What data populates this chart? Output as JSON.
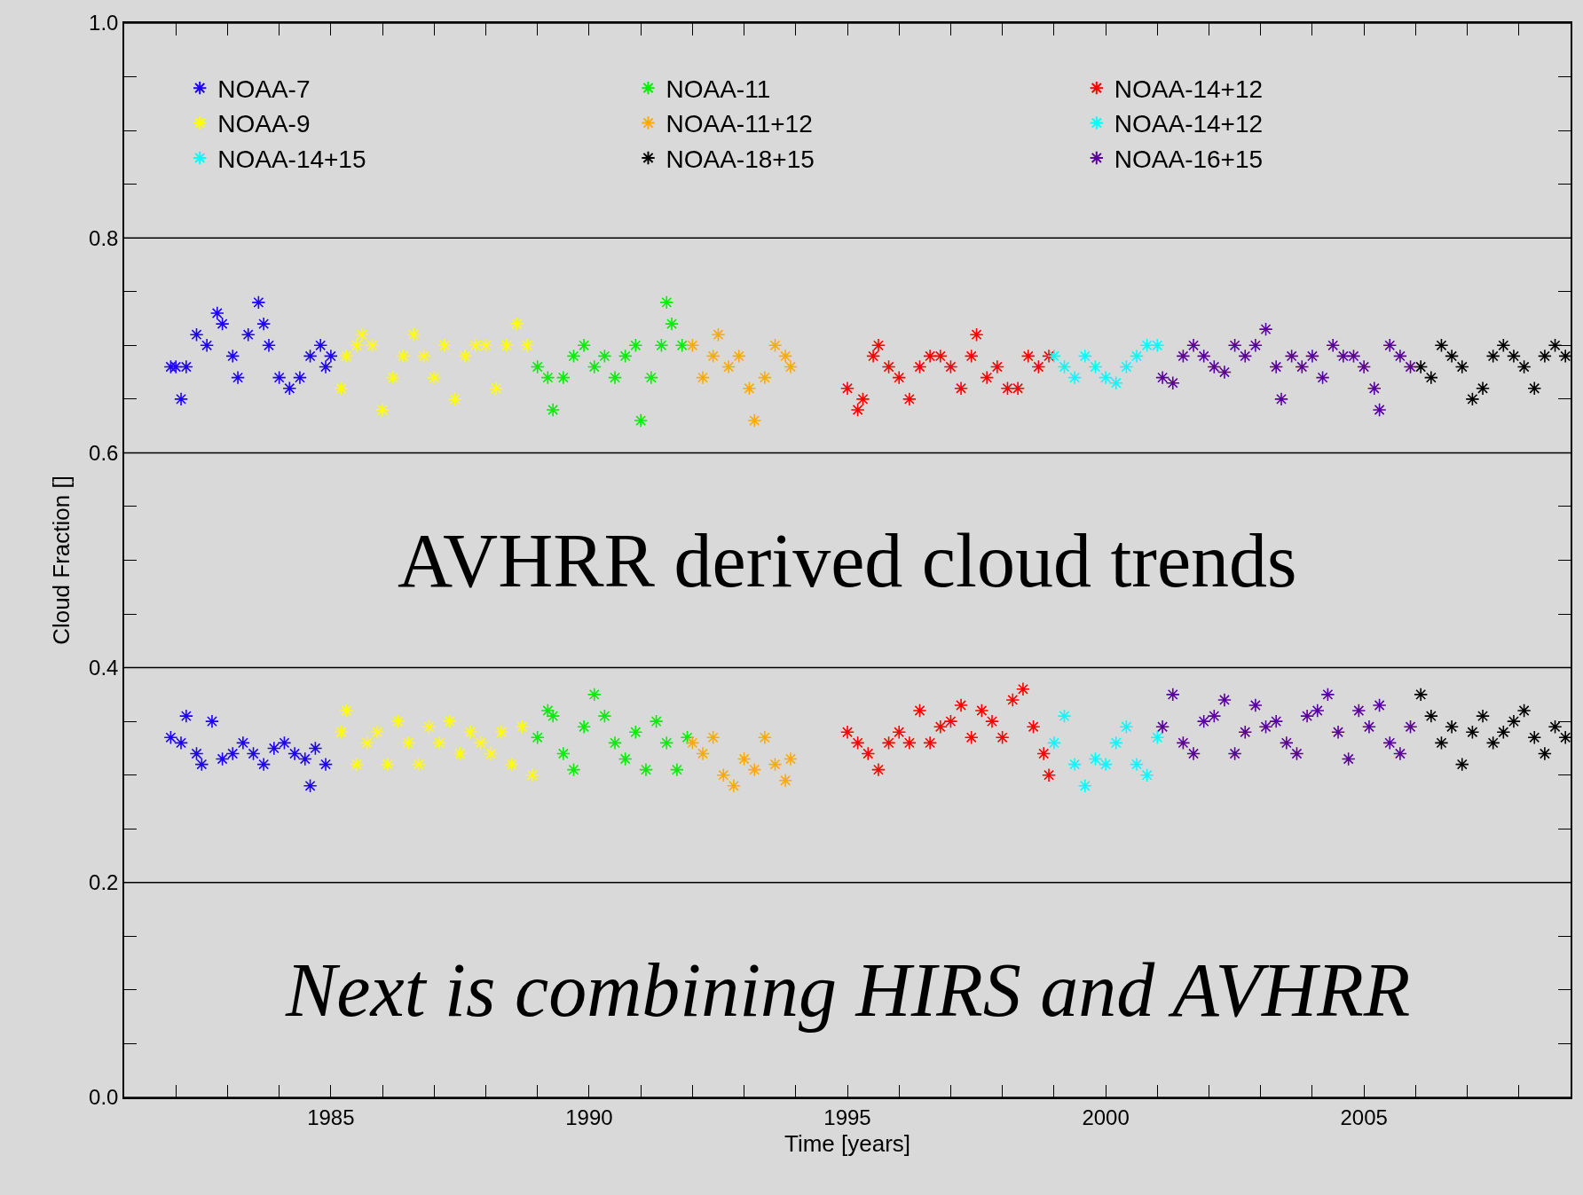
{
  "chart_data": {
    "type": "scatter",
    "xlabel": "Time [years]",
    "ylabel": "Cloud Fraction []",
    "annotations": [
      "AVHRR derived cloud trends",
      "Next is combining HIRS and AVHRR"
    ],
    "xlim": [
      1981,
      2009
    ],
    "ylim": [
      0,
      1
    ],
    "xticks": [
      {
        "value": 1982,
        "label": null
      },
      {
        "value": 1983,
        "label": null
      },
      {
        "value": 1984,
        "label": null
      },
      1985,
      {
        "value": 1986,
        "label": null
      },
      {
        "value": 1987,
        "label": null
      },
      {
        "value": 1988,
        "label": null
      },
      {
        "value": 1989,
        "label": null
      },
      1990,
      {
        "value": 1991,
        "label": null
      },
      {
        "value": 1992,
        "label": null
      },
      {
        "value": 1993,
        "label": null
      },
      {
        "value": 1994,
        "label": null
      },
      1995,
      {
        "value": 1996,
        "label": null
      },
      {
        "value": 1997,
        "label": null
      },
      {
        "value": 1998,
        "label": null
      },
      {
        "value": 1999,
        "label": null
      },
      2000,
      {
        "value": 2001,
        "label": null
      },
      {
        "value": 2002,
        "label": null
      },
      {
        "value": 2003,
        "label": null
      },
      {
        "value": 2004,
        "label": null
      },
      2005,
      {
        "value": 2006,
        "label": null
      },
      {
        "value": 2007,
        "label": null
      },
      {
        "value": 2008,
        "label": null
      }
    ],
    "yticks": [
      {
        "value": 0,
        "label": "0.0"
      },
      {
        "value": 0.05,
        "label": null
      },
      {
        "value": 0.1,
        "label": null
      },
      {
        "value": 0.15,
        "label": null
      },
      {
        "value": 0.2,
        "label": "0.2"
      },
      {
        "value": 0.25,
        "label": null
      },
      {
        "value": 0.3,
        "label": null
      },
      {
        "value": 0.35,
        "label": null
      },
      {
        "value": 0.4,
        "label": "0.4"
      },
      {
        "value": 0.45,
        "label": null
      },
      {
        "value": 0.5,
        "label": null
      },
      {
        "value": 0.55,
        "label": null
      },
      {
        "value": 0.6,
        "label": "0.6"
      },
      {
        "value": 0.65,
        "label": null
      },
      {
        "value": 0.7,
        "label": null
      },
      {
        "value": 0.75,
        "label": null
      },
      {
        "value": 0.8,
        "label": "0.8"
      },
      {
        "value": 0.85,
        "label": null
      },
      {
        "value": 0.9,
        "label": null
      },
      {
        "value": 0.95,
        "label": null
      },
      {
        "value": 1,
        "label": "1.0"
      }
    ],
    "grid": "y",
    "legend": "top left",
    "marker": "cross",
    "series": [
      {
        "name": "NOAA-7",
        "color": "#1e00ff",
        "x": [
          1981.9,
          1982.0,
          1982.1,
          1982.2,
          1982.4,
          1982.6,
          1982.8,
          1982.9,
          1983.1,
          1983.2,
          1983.4,
          1983.6,
          1983.7,
          1983.8,
          1984.0,
          1984.2,
          1984.4,
          1984.6,
          1984.8,
          1984.9,
          1985.0,
          1981.9,
          1982.1,
          1982.2,
          1982.4,
          1982.5,
          1982.7,
          1982.9,
          1983.1,
          1983.3,
          1983.5,
          1983.7,
          1983.9,
          1984.1,
          1984.3,
          1984.5,
          1984.6,
          1984.7,
          1984.9
        ],
        "values": [
          0.68,
          0.68,
          0.65,
          0.68,
          0.71,
          0.7,
          0.73,
          0.72,
          0.69,
          0.67,
          0.71,
          0.74,
          0.72,
          0.7,
          0.67,
          0.66,
          0.67,
          0.69,
          0.7,
          0.68,
          0.69,
          0.335,
          0.33,
          0.355,
          0.32,
          0.31,
          0.35,
          0.315,
          0.32,
          0.33,
          0.32,
          0.31,
          0.325,
          0.33,
          0.32,
          0.315,
          0.29,
          0.325,
          0.31
        ]
      },
      {
        "name": "NOAA-11",
        "color": "#00f000",
        "x": [
          1989.0,
          1989.2,
          1989.3,
          1989.5,
          1989.7,
          1989.9,
          1990.1,
          1990.3,
          1990.5,
          1990.7,
          1990.9,
          1991.0,
          1991.2,
          1991.4,
          1991.5,
          1991.6,
          1991.8,
          1989.0,
          1989.2,
          1989.3,
          1989.5,
          1989.7,
          1989.9,
          1990.1,
          1990.3,
          1990.5,
          1990.7,
          1990.9,
          1991.1,
          1991.3,
          1991.5,
          1991.7,
          1991.9
        ],
        "values": [
          0.68,
          0.67,
          0.64,
          0.67,
          0.69,
          0.7,
          0.68,
          0.69,
          0.67,
          0.69,
          0.7,
          0.63,
          0.67,
          0.7,
          0.74,
          0.72,
          0.7,
          0.335,
          0.36,
          0.355,
          0.32,
          0.305,
          0.345,
          0.375,
          0.355,
          0.33,
          0.315,
          0.34,
          0.305,
          0.35,
          0.33,
          0.305,
          0.335
        ]
      },
      {
        "name": "NOAA-14+12",
        "color": "#ff0000",
        "x": [
          1995.0,
          1995.2,
          1995.3,
          1995.5,
          1995.6,
          1995.8,
          1996.0,
          1996.2,
          1996.4,
          1996.6,
          1996.8,
          1997.0,
          1997.2,
          1997.4,
          1997.5,
          1997.7,
          1997.9,
          1998.1,
          1998.3,
          1998.5,
          1998.7,
          1998.9,
          1995.0,
          1995.2,
          1995.4,
          1995.6,
          1995.8,
          1996.0,
          1996.2,
          1996.4,
          1996.6,
          1996.8,
          1997.0,
          1997.2,
          1997.4,
          1997.6,
          1997.8,
          1998.0,
          1998.2,
          1998.4,
          1998.6,
          1998.8,
          1998.9
        ],
        "values": [
          0.66,
          0.64,
          0.65,
          0.69,
          0.7,
          0.68,
          0.67,
          0.65,
          0.68,
          0.69,
          0.69,
          0.68,
          0.66,
          0.69,
          0.71,
          0.67,
          0.68,
          0.66,
          0.66,
          0.69,
          0.68,
          0.69,
          0.34,
          0.33,
          0.32,
          0.305,
          0.33,
          0.34,
          0.33,
          0.36,
          0.33,
          0.345,
          0.35,
          0.365,
          0.335,
          0.36,
          0.35,
          0.335,
          0.37,
          0.38,
          0.345,
          0.32,
          0.3
        ]
      },
      {
        "name": "NOAA-9",
        "color": "#ffff00",
        "x": [
          1985.2,
          1985.3,
          1985.5,
          1985.6,
          1985.8,
          1986.0,
          1986.2,
          1986.4,
          1986.6,
          1986.8,
          1987.0,
          1987.2,
          1987.4,
          1987.6,
          1987.8,
          1988.0,
          1988.2,
          1988.4,
          1988.6,
          1988.8,
          1985.2,
          1985.3,
          1985.5,
          1985.7,
          1985.9,
          1986.1,
          1986.3,
          1986.5,
          1986.7,
          1986.9,
          1987.1,
          1987.3,
          1987.5,
          1987.7,
          1987.9,
          1988.1,
          1988.3,
          1988.5,
          1988.7,
          1988.9
        ],
        "values": [
          0.66,
          0.69,
          0.7,
          0.71,
          0.7,
          0.64,
          0.67,
          0.69,
          0.71,
          0.69,
          0.67,
          0.7,
          0.65,
          0.69,
          0.7,
          0.7,
          0.66,
          0.7,
          0.72,
          0.7,
          0.34,
          0.36,
          0.31,
          0.33,
          0.34,
          0.31,
          0.35,
          0.33,
          0.31,
          0.345,
          0.33,
          0.35,
          0.32,
          0.34,
          0.33,
          0.32,
          0.34,
          0.31,
          0.345,
          0.3
        ]
      },
      {
        "name": "NOAA-11+12",
        "color": "#ffaa00",
        "x": [
          1992.0,
          1992.2,
          1992.4,
          1992.5,
          1992.7,
          1992.9,
          1993.1,
          1993.2,
          1993.4,
          1993.6,
          1993.8,
          1993.9,
          1992.0,
          1992.2,
          1992.4,
          1992.6,
          1992.8,
          1993.0,
          1993.2,
          1993.4,
          1993.6,
          1993.8,
          1993.9
        ],
        "values": [
          0.7,
          0.67,
          0.69,
          0.71,
          0.68,
          0.69,
          0.66,
          0.63,
          0.67,
          0.7,
          0.69,
          0.68,
          0.33,
          0.32,
          0.335,
          0.3,
          0.29,
          0.315,
          0.305,
          0.335,
          0.31,
          0.295,
          0.315
        ]
      },
      {
        "name": "NOAA-14+12",
        "color": "#00ffff",
        "x": [
          1999.0,
          1999.2,
          1999.4,
          1999.6,
          1999.8,
          2000.0,
          2000.2,
          2000.4,
          2000.6,
          2000.8,
          2001.0
        ],
        "values": [
          0.69,
          0.68,
          0.67,
          0.69,
          0.68,
          0.67,
          0.665,
          0.68,
          0.69,
          0.7,
          0.7
        ]
      },
      {
        "name": "NOAA-14+15",
        "color": "#00ffff",
        "x": [
          1999.0,
          1999.2,
          1999.4,
          1999.6,
          1999.8,
          2000.0,
          2000.2,
          2000.4,
          2000.6,
          2000.8,
          2001.0
        ],
        "values": [
          0.33,
          0.355,
          0.31,
          0.29,
          0.315,
          0.31,
          0.33,
          0.345,
          0.31,
          0.3,
          0.335
        ]
      },
      {
        "name": "NOAA-18+15",
        "color": "#000000",
        "x": [
          2006.1,
          2006.3,
          2006.5,
          2006.7,
          2006.9,
          2007.1,
          2007.3,
          2007.5,
          2007.7,
          2007.9,
          2008.1,
          2008.3,
          2008.5,
          2008.7,
          2008.9,
          2006.1,
          2006.3,
          2006.5,
          2006.7,
          2006.9,
          2007.1,
          2007.3,
          2007.5,
          2007.7,
          2007.9,
          2008.1,
          2008.3,
          2008.5,
          2008.7,
          2008.9
        ],
        "values": [
          0.68,
          0.67,
          0.7,
          0.69,
          0.68,
          0.65,
          0.66,
          0.69,
          0.7,
          0.69,
          0.68,
          0.66,
          0.69,
          0.7,
          0.69,
          0.375,
          0.355,
          0.33,
          0.345,
          0.31,
          0.34,
          0.355,
          0.33,
          0.34,
          0.35,
          0.36,
          0.335,
          0.32,
          0.345,
          0.335
        ]
      },
      {
        "name": "NOAA-16+15",
        "color": "#5a00a0",
        "x": [
          2001.1,
          2001.3,
          2001.5,
          2001.7,
          2001.9,
          2002.1,
          2002.3,
          2002.5,
          2002.7,
          2002.9,
          2003.1,
          2003.3,
          2003.4,
          2003.6,
          2003.8,
          2004.0,
          2004.2,
          2004.4,
          2004.6,
          2004.8,
          2005.0,
          2005.2,
          2005.3,
          2005.5,
          2005.7,
          2005.9,
          2001.1,
          2001.3,
          2001.5,
          2001.7,
          2001.9,
          2002.1,
          2002.3,
          2002.5,
          2002.7,
          2002.9,
          2003.1,
          2003.3,
          2003.5,
          2003.7,
          2003.9,
          2004.1,
          2004.3,
          2004.5,
          2004.7,
          2004.9,
          2005.1,
          2005.3,
          2005.5,
          2005.7,
          2005.9
        ],
        "values": [
          0.67,
          0.665,
          0.69,
          0.7,
          0.69,
          0.68,
          0.675,
          0.7,
          0.69,
          0.7,
          0.715,
          0.68,
          0.65,
          0.69,
          0.68,
          0.69,
          0.67,
          0.7,
          0.69,
          0.69,
          0.68,
          0.66,
          0.64,
          0.7,
          0.69,
          0.68,
          0.345,
          0.375,
          0.33,
          0.32,
          0.35,
          0.355,
          0.37,
          0.32,
          0.34,
          0.365,
          0.345,
          0.35,
          0.33,
          0.32,
          0.355,
          0.36,
          0.375,
          0.34,
          0.315,
          0.36,
          0.345,
          0.365,
          0.33,
          0.32,
          0.345
        ]
      }
    ]
  }
}
